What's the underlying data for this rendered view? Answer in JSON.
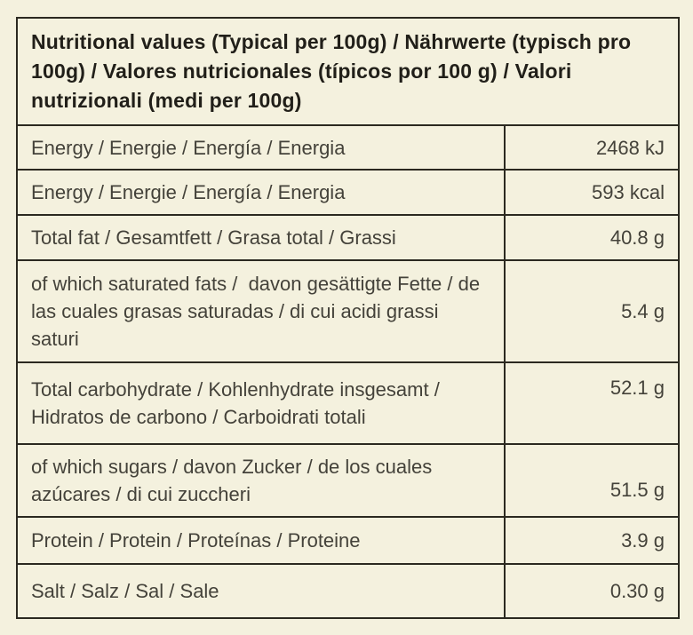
{
  "colors": {
    "background": "#f4f1de",
    "border": "#2b2920",
    "header_text": "#211f19",
    "body_text": "#44423a"
  },
  "table": {
    "header": "Nutritional values (Typical per 100g) / Nährwerte (typisch pro 100g) / Valores nutricionales (típicos por 100 g) / Valori nutrizionali (medi per 100g)",
    "rows": [
      {
        "label": "Energy / Energie / Energía / Energia",
        "value": "2468 kJ"
      },
      {
        "label": "Energy / Energie / Energía / Energia",
        "value": "593 kcal"
      },
      {
        "label": "Total fat / Gesamtfett / Grasa total / Grassi",
        "value": "40.8 g"
      },
      {
        "label": "of which saturated fats /  davon gesättigte Fette / de las cuales grasas saturadas / di cui acidi grassi saturi",
        "value": "5.4 g"
      },
      {
        "label": "Total carbohydrate / Kohlenhydrate insgesamt / Hidratos de carbono / Carboidrati totali",
        "value": "52.1 g"
      },
      {
        "label": "of which sugars / davon Zucker / de los cuales azúcares / di cui zuccheri",
        "value": "51.5 g"
      },
      {
        "label": "Protein / Protein / Proteínas / Proteine",
        "value": "3.9 g"
      },
      {
        "label": "Salt / Salz / Sal / Sale",
        "value": "0.30 g"
      }
    ]
  }
}
